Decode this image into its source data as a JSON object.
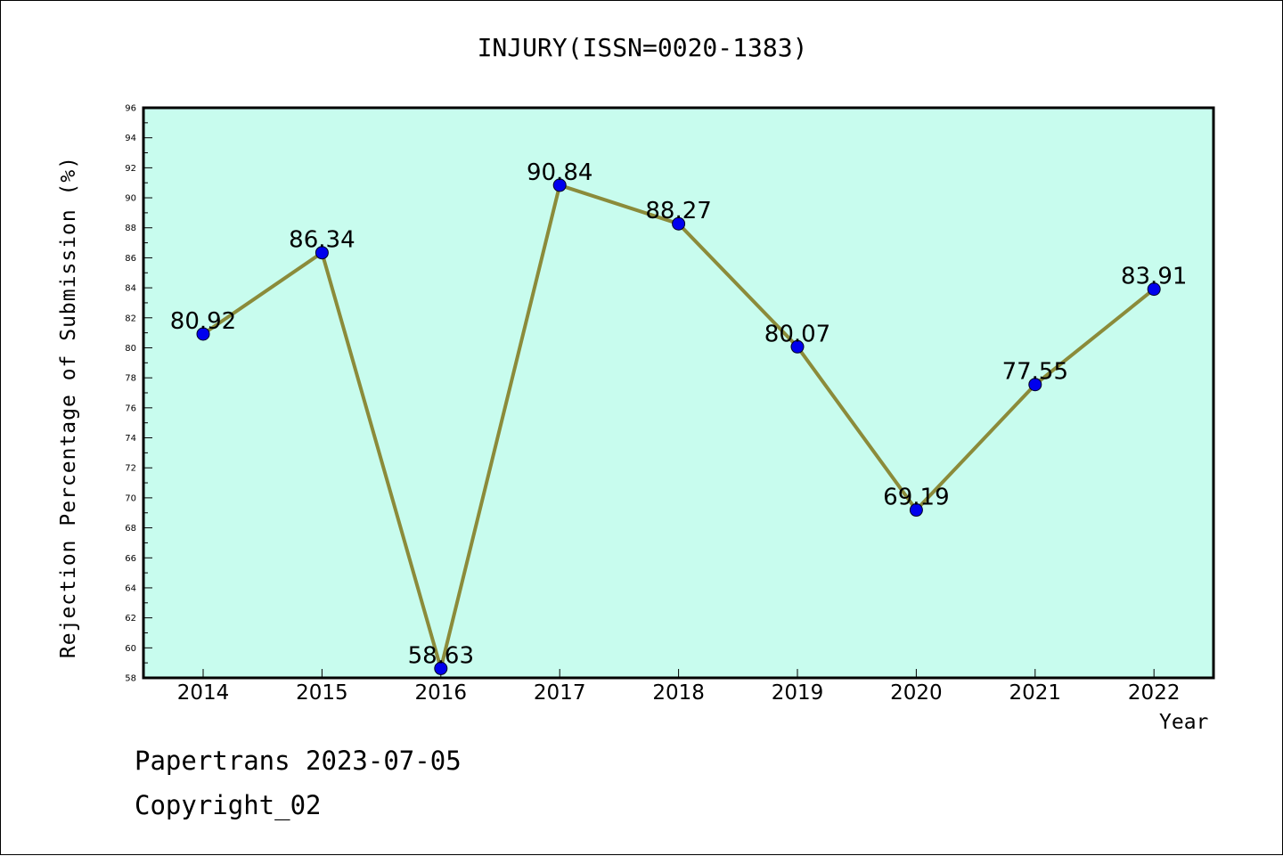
{
  "chart_data": {
    "type": "line",
    "title": "INJURY(ISSN=0020-1383)",
    "xlabel": "Year",
    "ylabel": "Rejection Percentage of Submission (%)",
    "categories": [
      "2014",
      "2015",
      "2016",
      "2017",
      "2018",
      "2019",
      "2020",
      "2021",
      "2022"
    ],
    "series": [
      {
        "values": [
          80.92,
          86.34,
          58.63,
          90.84,
          88.27,
          80.07,
          69.19,
          77.55,
          83.91
        ],
        "labels": [
          "80.92",
          "86.34",
          "58.63",
          "90.84",
          "88.27",
          "80.07",
          "69.19",
          "77.55",
          "83.91"
        ]
      }
    ],
    "ylim": [
      58,
      96
    ],
    "yticks": [
      58,
      60,
      62,
      64,
      66,
      68,
      70,
      72,
      74,
      76,
      78,
      80,
      82,
      84,
      86,
      88,
      90,
      92,
      94,
      96
    ],
    "grid": false,
    "legend": "none",
    "colors": {
      "plot_background": "#c8fcee",
      "line": "#8b8b3a",
      "marker": "#0000ee",
      "axis": "#000000"
    }
  },
  "footer": {
    "line1": "Papertrans 2023-07-05",
    "line2": "Copyright_02"
  }
}
